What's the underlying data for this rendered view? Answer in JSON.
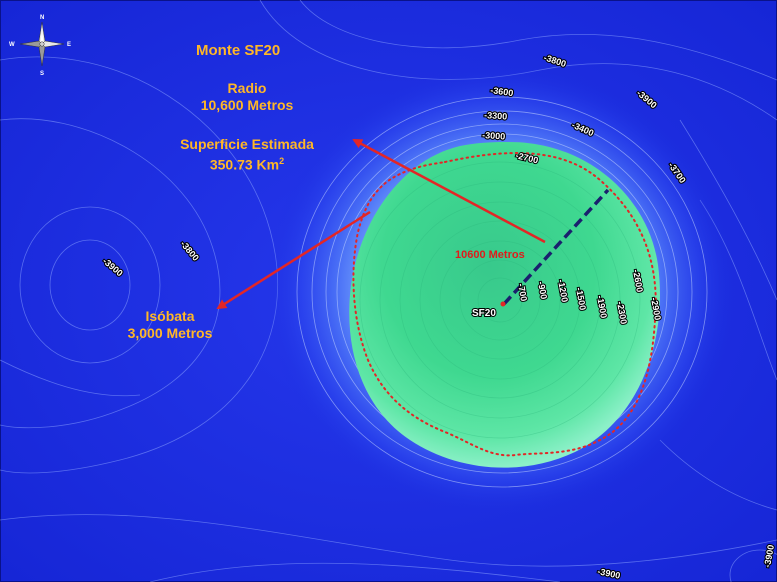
{
  "map": {
    "title": "Monte SF20",
    "radius_label": "Radio",
    "radius_value": "10,600 Metros",
    "area_label": "Superficie Estimada",
    "area_value": "350.73 Km",
    "area_unit_superscript": "2",
    "isobath_label": "Isóbata",
    "isobath_value": "3,000 Metros",
    "radius_line_label": "10600 Metros",
    "site_label": "SF20",
    "colors": {
      "ocean": "#1a2fe0",
      "seamount_top": "#3fd98a",
      "annotation_text": "#ffb727",
      "arrow": "#e32626",
      "isobath_outline": "#e32626",
      "radius_line": "#1a1f6e"
    }
  },
  "compass": {
    "north": "N",
    "south": "S",
    "east": "E",
    "west": "W",
    "icon": "compass-rose-icon"
  },
  "contour_labels": {
    "c1": "-3800",
    "c2": "-3600",
    "c3": "-3900",
    "c4": "-3300",
    "c5": "-3400",
    "c6": "-3000",
    "c7": "-3700",
    "c8": "-2700",
    "c9": "-3900",
    "c10": "-3800",
    "r1": "-700",
    "r2": "-900",
    "r3": "-1200",
    "r4": "-1500",
    "r5": "-1900",
    "r6": "-2300",
    "r7": "-2600",
    "r8": "-2900",
    "b1": "-3900",
    "b2": "-3900"
  }
}
